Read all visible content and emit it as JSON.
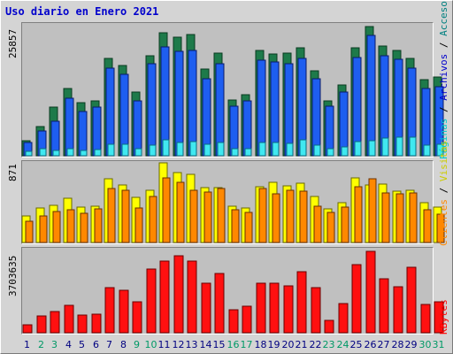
{
  "title": "Uso diario en Enero 2021",
  "colors": {
    "paginas": "#00ffff",
    "solicitudes": "#0000ff",
    "visitas": "#ffff00",
    "clientes": "#ff8800",
    "archivos": "#00ffff",
    "kbytes": "#ff0000",
    "weekday_label": "#000080",
    "weekend_label": "#009966"
  },
  "legend": {
    "top_panel": [
      {
        "text": "Páginas",
        "color": "#00cccc"
      },
      {
        "text": " / ",
        "color": "#000000"
      },
      {
        "text": "Archivos",
        "color": "#0000cc"
      },
      {
        "text": " / ",
        "color": "#000000"
      },
      {
        "text": "Accesos",
        "color": "#008080"
      }
    ],
    "mid_panel": [
      {
        "text": "Clientes",
        "color": "#ff8800"
      },
      {
        "text": " / ",
        "color": "#000000"
      },
      {
        "text": "Visitas",
        "color": "#cccc00"
      }
    ],
    "bottom_panel": [
      {
        "text": "KBytes",
        "color": "#ff0000"
      }
    ]
  },
  "chart_data": [
    {
      "type": "bar",
      "name": "accesos-archivos-paginas",
      "categories": [
        "1",
        "2",
        "3",
        "4",
        "5",
        "6",
        "7",
        "8",
        "9",
        "10",
        "11",
        "12",
        "13",
        "14",
        "15",
        "16",
        "17",
        "18",
        "19",
        "20",
        "21",
        "22",
        "23",
        "24",
        "25",
        "26",
        "27",
        "28",
        "29",
        "30",
        "31"
      ],
      "ymax_label": "25857",
      "ylim": [
        0,
        25857
      ],
      "series": [
        {
          "name": "Accesos",
          "values": [
            3000,
            5800,
            9800,
            13500,
            10600,
            11000,
            19500,
            18000,
            12800,
            20000,
            24700,
            23800,
            24300,
            17400,
            20500,
            11200,
            12200,
            21100,
            20400,
            20500,
            21600,
            17000,
            11000,
            14200,
            21600,
            25857,
            21900,
            21100,
            19400,
            15200,
            15800
          ]
        },
        {
          "name": "Archivos",
          "values": [
            2600,
            4900,
            6900,
            11600,
            8800,
            9700,
            17600,
            16300,
            11000,
            18400,
            21700,
            20900,
            21000,
            15400,
            18400,
            10000,
            11000,
            19200,
            18700,
            18500,
            19400,
            15400,
            9900,
            12800,
            19600,
            24000,
            20000,
            19300,
            17500,
            13400,
            13800
          ]
        },
        {
          "name": "Páginas",
          "values": [
            800,
            1400,
            1100,
            1500,
            1100,
            1300,
            2300,
            2300,
            1400,
            2200,
            3100,
            2600,
            2900,
            2300,
            2600,
            1400,
            1400,
            2600,
            2600,
            2500,
            3100,
            2100,
            1500,
            1800,
            2900,
            3000,
            3600,
            3700,
            3800,
            2200,
            2300
          ]
        }
      ]
    },
    {
      "type": "bar",
      "name": "visitas-clientes",
      "categories": [
        "1",
        "2",
        "3",
        "4",
        "5",
        "6",
        "7",
        "8",
        "9",
        "10",
        "11",
        "12",
        "13",
        "14",
        "15",
        "16",
        "17",
        "18",
        "19",
        "20",
        "21",
        "22",
        "23",
        "24",
        "25",
        "26",
        "27",
        "28",
        "29",
        "30",
        "31"
      ],
      "ymax_label": "871",
      "ylim": [
        0,
        871
      ],
      "series": [
        {
          "name": "Visitas",
          "values": [
            290,
            380,
            410,
            480,
            390,
            400,
            700,
            630,
            490,
            570,
            871,
            760,
            750,
            600,
            600,
            400,
            380,
            610,
            660,
            620,
            650,
            500,
            370,
            440,
            710,
            630,
            640,
            560,
            570,
            440,
            390
          ]
        },
        {
          "name": "Clientes",
          "values": [
            230,
            290,
            340,
            360,
            320,
            370,
            590,
            570,
            380,
            500,
            710,
            660,
            570,
            550,
            590,
            360,
            330,
            590,
            530,
            570,
            560,
            400,
            330,
            390,
            610,
            700,
            540,
            530,
            540,
            360,
            310
          ]
        }
      ]
    },
    {
      "type": "bar",
      "name": "kbytes",
      "categories": [
        "1",
        "2",
        "3",
        "4",
        "5",
        "6",
        "7",
        "8",
        "9",
        "10",
        "11",
        "12",
        "13",
        "14",
        "15",
        "16",
        "17",
        "18",
        "19",
        "20",
        "21",
        "22",
        "23",
        "24",
        "25",
        "26",
        "27",
        "28",
        "29",
        "30",
        "31"
      ],
      "ymax_label": "3703635",
      "ylim": [
        0,
        3703635
      ],
      "series": [
        {
          "name": "KBytes",
          "values": [
            380000,
            760000,
            950000,
            1250000,
            800000,
            860000,
            2060000,
            1950000,
            1390000,
            2890000,
            3250000,
            3520000,
            3280000,
            2240000,
            2690000,
            1050000,
            1190000,
            2260000,
            2240000,
            2140000,
            2780000,
            2050000,
            580000,
            1310000,
            3080000,
            3703635,
            2440000,
            2090000,
            2970000,
            1270000,
            1400000
          ]
        }
      ]
    }
  ]
}
